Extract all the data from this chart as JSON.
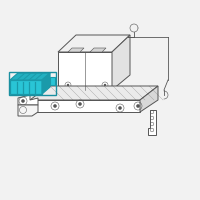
{
  "bg_color": "#f2f2f2",
  "highlight_color": "#29C5D6",
  "highlight_dark": "#1a9aaa",
  "highlight_mid": "#22b0c0",
  "line_color": "#555555",
  "line_color_light": "#888888",
  "fig_width": 2.0,
  "fig_height": 2.0,
  "dpi": 100,
  "xlim": [
    0,
    200
  ],
  "ylim": [
    0,
    200
  ]
}
